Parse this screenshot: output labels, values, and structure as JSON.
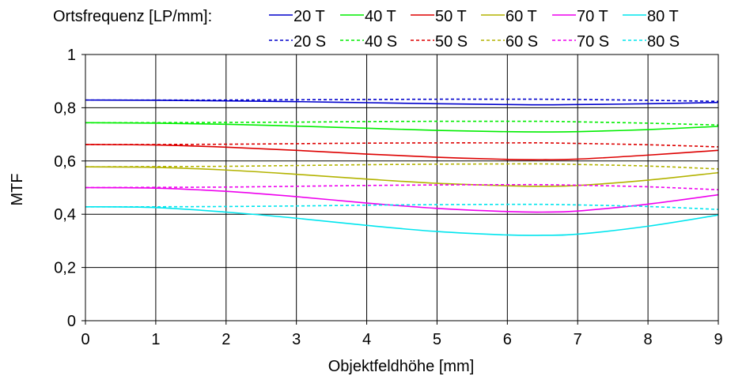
{
  "chart_data": {
    "type": "line",
    "legend_title": "Ortsfrequenz [LP/mm]:",
    "xlabel": "Objektfeldhöhe [mm]",
    "ylabel": "MTF",
    "xlim": [
      0,
      9
    ],
    "ylim": [
      0,
      1
    ],
    "x_ticks": [
      "0",
      "1",
      "2",
      "3",
      "4",
      "5",
      "6",
      "7",
      "8",
      "9"
    ],
    "y_ticks": [
      "0",
      "0,2",
      "0,4",
      "0,6",
      "0,8",
      "1"
    ],
    "grid": true,
    "legend_position": "top",
    "x": [
      0,
      1,
      2,
      3,
      4,
      5,
      6,
      6.5,
      7,
      8,
      9
    ],
    "series": [
      {
        "name": "20 T",
        "color": "#0000cc",
        "dash": false,
        "values": [
          0.829,
          0.828,
          0.826,
          0.823,
          0.819,
          0.815,
          0.812,
          0.811,
          0.812,
          0.815,
          0.82
        ]
      },
      {
        "name": "40 T",
        "color": "#00ee00",
        "dash": false,
        "values": [
          0.744,
          0.742,
          0.738,
          0.731,
          0.723,
          0.715,
          0.71,
          0.709,
          0.71,
          0.718,
          0.73
        ]
      },
      {
        "name": "50 T",
        "color": "#dd0000",
        "dash": false,
        "values": [
          0.662,
          0.66,
          0.652,
          0.64,
          0.626,
          0.614,
          0.606,
          0.605,
          0.607,
          0.622,
          0.64
        ]
      },
      {
        "name": "60 T",
        "color": "#b3b300",
        "dash": false,
        "values": [
          0.578,
          0.576,
          0.566,
          0.55,
          0.532,
          0.516,
          0.507,
          0.505,
          0.508,
          0.528,
          0.556
        ]
      },
      {
        "name": "70 T",
        "color": "#ee00ee",
        "dash": false,
        "values": [
          0.5,
          0.498,
          0.486,
          0.466,
          0.442,
          0.422,
          0.41,
          0.408,
          0.412,
          0.438,
          0.473
        ]
      },
      {
        "name": "80 T",
        "color": "#00e5ee",
        "dash": false,
        "values": [
          0.428,
          0.425,
          0.408,
          0.385,
          0.358,
          0.335,
          0.322,
          0.321,
          0.325,
          0.355,
          0.397
        ]
      },
      {
        "name": "20 S",
        "color": "#0000cc",
        "dash": true,
        "values": [
          0.829,
          0.829,
          0.829,
          0.83,
          0.831,
          0.832,
          0.832,
          0.832,
          0.831,
          0.828,
          0.824
        ]
      },
      {
        "name": "40 S",
        "color": "#00ee00",
        "dash": true,
        "values": [
          0.744,
          0.744,
          0.745,
          0.746,
          0.748,
          0.749,
          0.749,
          0.749,
          0.747,
          0.742,
          0.735
        ]
      },
      {
        "name": "50 S",
        "color": "#dd0000",
        "dash": true,
        "values": [
          0.662,
          0.662,
          0.663,
          0.665,
          0.667,
          0.668,
          0.668,
          0.668,
          0.666,
          0.661,
          0.653
        ]
      },
      {
        "name": "60 S",
        "color": "#b3b300",
        "dash": true,
        "values": [
          0.578,
          0.579,
          0.58,
          0.583,
          0.586,
          0.588,
          0.589,
          0.589,
          0.587,
          0.581,
          0.57
        ]
      },
      {
        "name": "70 S",
        "color": "#ee00ee",
        "dash": true,
        "values": [
          0.5,
          0.501,
          0.502,
          0.505,
          0.508,
          0.51,
          0.511,
          0.511,
          0.509,
          0.503,
          0.492
        ]
      },
      {
        "name": "80 S",
        "color": "#00e5ee",
        "dash": true,
        "values": [
          0.428,
          0.428,
          0.429,
          0.431,
          0.434,
          0.436,
          0.437,
          0.437,
          0.435,
          0.429,
          0.418
        ]
      }
    ]
  }
}
